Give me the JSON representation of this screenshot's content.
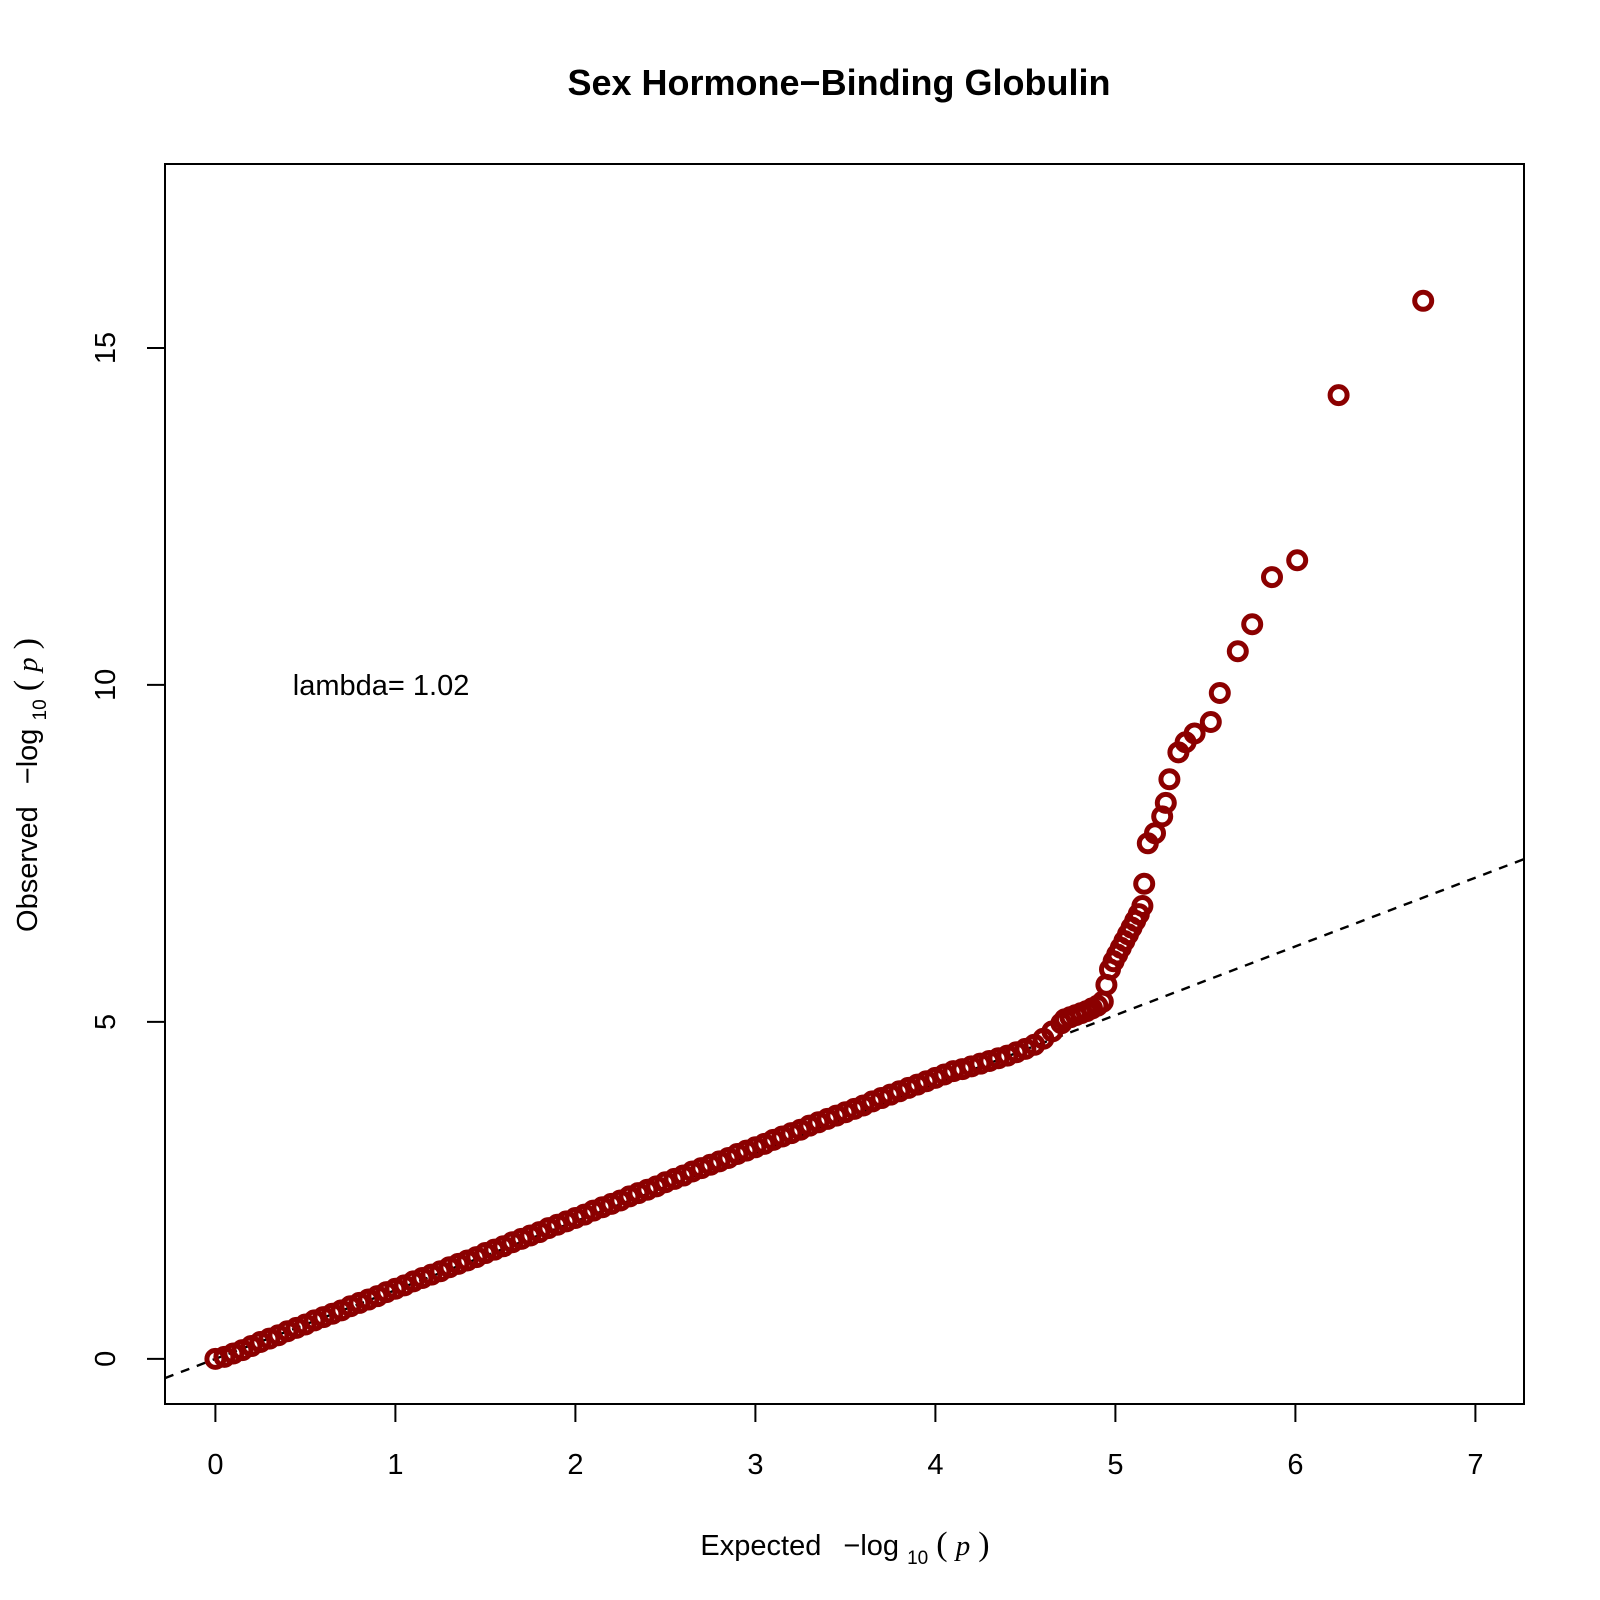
{
  "chart_data": {
    "type": "scatter",
    "title": "Sex Hormone−Binding Globulin",
    "xlabel": {
      "prefix": "Expected",
      "minus": "−log",
      "sub": "10",
      "open": "(",
      "var": "p",
      "close": ")"
    },
    "ylabel": {
      "prefix": "Observed",
      "minus": "−log",
      "sub": "10",
      "open": "(",
      "var": "p",
      "close": ")"
    },
    "xlim": [
      -0.28,
      7.27
    ],
    "ylim": [
      -0.67,
      17.73
    ],
    "xticks": [
      {
        "value": 0,
        "label": "0"
      },
      {
        "value": 1,
        "label": "1"
      },
      {
        "value": 2,
        "label": "2"
      },
      {
        "value": 3,
        "label": "3"
      },
      {
        "value": 4,
        "label": "4"
      },
      {
        "value": 5,
        "label": "5"
      },
      {
        "value": 6,
        "label": "6"
      },
      {
        "value": 7,
        "label": "7"
      }
    ],
    "yticks": [
      {
        "value": 0,
        "label": "0"
      },
      {
        "value": 5,
        "label": "5"
      },
      {
        "value": 10,
        "label": "10"
      },
      {
        "value": 15,
        "label": "15"
      }
    ],
    "annotation": {
      "text": "lambda= 1.02",
      "x": 0.43,
      "y": 10.0
    },
    "reference_line": {
      "slope": 1.02,
      "intercept": 0,
      "style": "dashed"
    },
    "point_color": "#8b0000",
    "grid": false,
    "series": [
      {
        "points": [
          [
            0.0,
            0.0
          ],
          [
            0.05,
            0.03
          ],
          [
            0.1,
            0.08
          ],
          [
            0.15,
            0.13
          ],
          [
            0.2,
            0.19
          ],
          [
            0.25,
            0.25
          ],
          [
            0.3,
            0.3
          ],
          [
            0.35,
            0.35
          ],
          [
            0.4,
            0.41
          ],
          [
            0.45,
            0.46
          ],
          [
            0.5,
            0.51
          ],
          [
            0.55,
            0.57
          ],
          [
            0.6,
            0.62
          ],
          [
            0.65,
            0.67
          ],
          [
            0.7,
            0.72
          ],
          [
            0.75,
            0.78
          ],
          [
            0.8,
            0.83
          ],
          [
            0.85,
            0.88
          ],
          [
            0.9,
            0.93
          ],
          [
            0.95,
            0.99
          ],
          [
            1.0,
            1.04
          ],
          [
            1.05,
            1.09
          ],
          [
            1.1,
            1.15
          ],
          [
            1.15,
            1.2
          ],
          [
            1.2,
            1.25
          ],
          [
            1.25,
            1.3
          ],
          [
            1.3,
            1.36
          ],
          [
            1.35,
            1.41
          ],
          [
            1.4,
            1.46
          ],
          [
            1.45,
            1.51
          ],
          [
            1.5,
            1.57
          ],
          [
            1.55,
            1.62
          ],
          [
            1.6,
            1.67
          ],
          [
            1.65,
            1.73
          ],
          [
            1.7,
            1.78
          ],
          [
            1.75,
            1.83
          ],
          [
            1.8,
            1.88
          ],
          [
            1.85,
            1.94
          ],
          [
            1.9,
            1.99
          ],
          [
            1.95,
            2.04
          ],
          [
            2.0,
            2.09
          ],
          [
            2.05,
            2.14
          ],
          [
            2.1,
            2.2
          ],
          [
            2.15,
            2.25
          ],
          [
            2.2,
            2.3
          ],
          [
            2.25,
            2.35
          ],
          [
            2.3,
            2.41
          ],
          [
            2.35,
            2.46
          ],
          [
            2.4,
            2.51
          ],
          [
            2.45,
            2.56
          ],
          [
            2.5,
            2.62
          ],
          [
            2.55,
            2.67
          ],
          [
            2.6,
            2.72
          ],
          [
            2.65,
            2.78
          ],
          [
            2.7,
            2.83
          ],
          [
            2.75,
            2.88
          ],
          [
            2.8,
            2.93
          ],
          [
            2.85,
            2.98
          ],
          [
            2.9,
            3.04
          ],
          [
            2.95,
            3.09
          ],
          [
            3.0,
            3.14
          ],
          [
            3.05,
            3.19
          ],
          [
            3.1,
            3.25
          ],
          [
            3.15,
            3.3
          ],
          [
            3.2,
            3.35
          ],
          [
            3.25,
            3.4
          ],
          [
            3.3,
            3.46
          ],
          [
            3.35,
            3.51
          ],
          [
            3.4,
            3.56
          ],
          [
            3.45,
            3.61
          ],
          [
            3.5,
            3.66
          ],
          [
            3.55,
            3.71
          ],
          [
            3.6,
            3.76
          ],
          [
            3.65,
            3.82
          ],
          [
            3.7,
            3.87
          ],
          [
            3.75,
            3.92
          ],
          [
            3.8,
            3.97
          ],
          [
            3.85,
            4.02
          ],
          [
            3.9,
            4.07
          ],
          [
            3.95,
            4.12
          ],
          [
            4.0,
            4.17
          ],
          [
            4.05,
            4.22
          ],
          [
            4.1,
            4.27
          ],
          [
            4.15,
            4.3
          ],
          [
            4.2,
            4.34
          ],
          [
            4.25,
            4.38
          ],
          [
            4.3,
            4.42
          ],
          [
            4.35,
            4.46
          ],
          [
            4.4,
            4.5
          ],
          [
            4.45,
            4.55
          ],
          [
            4.5,
            4.6
          ],
          [
            4.55,
            4.66
          ],
          [
            4.6,
            4.75
          ],
          [
            4.65,
            4.86
          ],
          [
            4.7,
            4.98
          ],
          [
            4.72,
            5.04
          ],
          [
            4.75,
            5.07
          ],
          [
            4.78,
            5.1
          ],
          [
            4.81,
            5.13
          ],
          [
            4.84,
            5.16
          ],
          [
            4.87,
            5.2
          ],
          [
            4.9,
            5.24
          ],
          [
            4.93,
            5.3
          ],
          [
            4.95,
            5.55
          ],
          [
            4.97,
            5.78
          ],
          [
            4.99,
            5.9
          ],
          [
            5.01,
            6.0
          ],
          [
            5.03,
            6.1
          ],
          [
            5.05,
            6.2
          ],
          [
            5.07,
            6.3
          ],
          [
            5.09,
            6.4
          ],
          [
            5.11,
            6.5
          ],
          [
            5.13,
            6.6
          ],
          [
            5.15,
            6.72
          ],
          [
            5.16,
            7.05
          ],
          [
            5.18,
            7.65
          ],
          [
            5.22,
            7.8
          ],
          [
            5.26,
            8.05
          ],
          [
            5.28,
            8.25
          ],
          [
            5.3,
            8.6
          ],
          [
            5.35,
            9.0
          ],
          [
            5.39,
            9.15
          ],
          [
            5.44,
            9.28
          ],
          [
            5.53,
            9.45
          ],
          [
            5.58,
            9.88
          ],
          [
            5.68,
            10.5
          ],
          [
            5.76,
            10.9
          ],
          [
            5.87,
            11.6
          ],
          [
            6.01,
            11.85
          ],
          [
            6.24,
            14.3
          ],
          [
            6.71,
            15.7
          ]
        ]
      }
    ]
  }
}
